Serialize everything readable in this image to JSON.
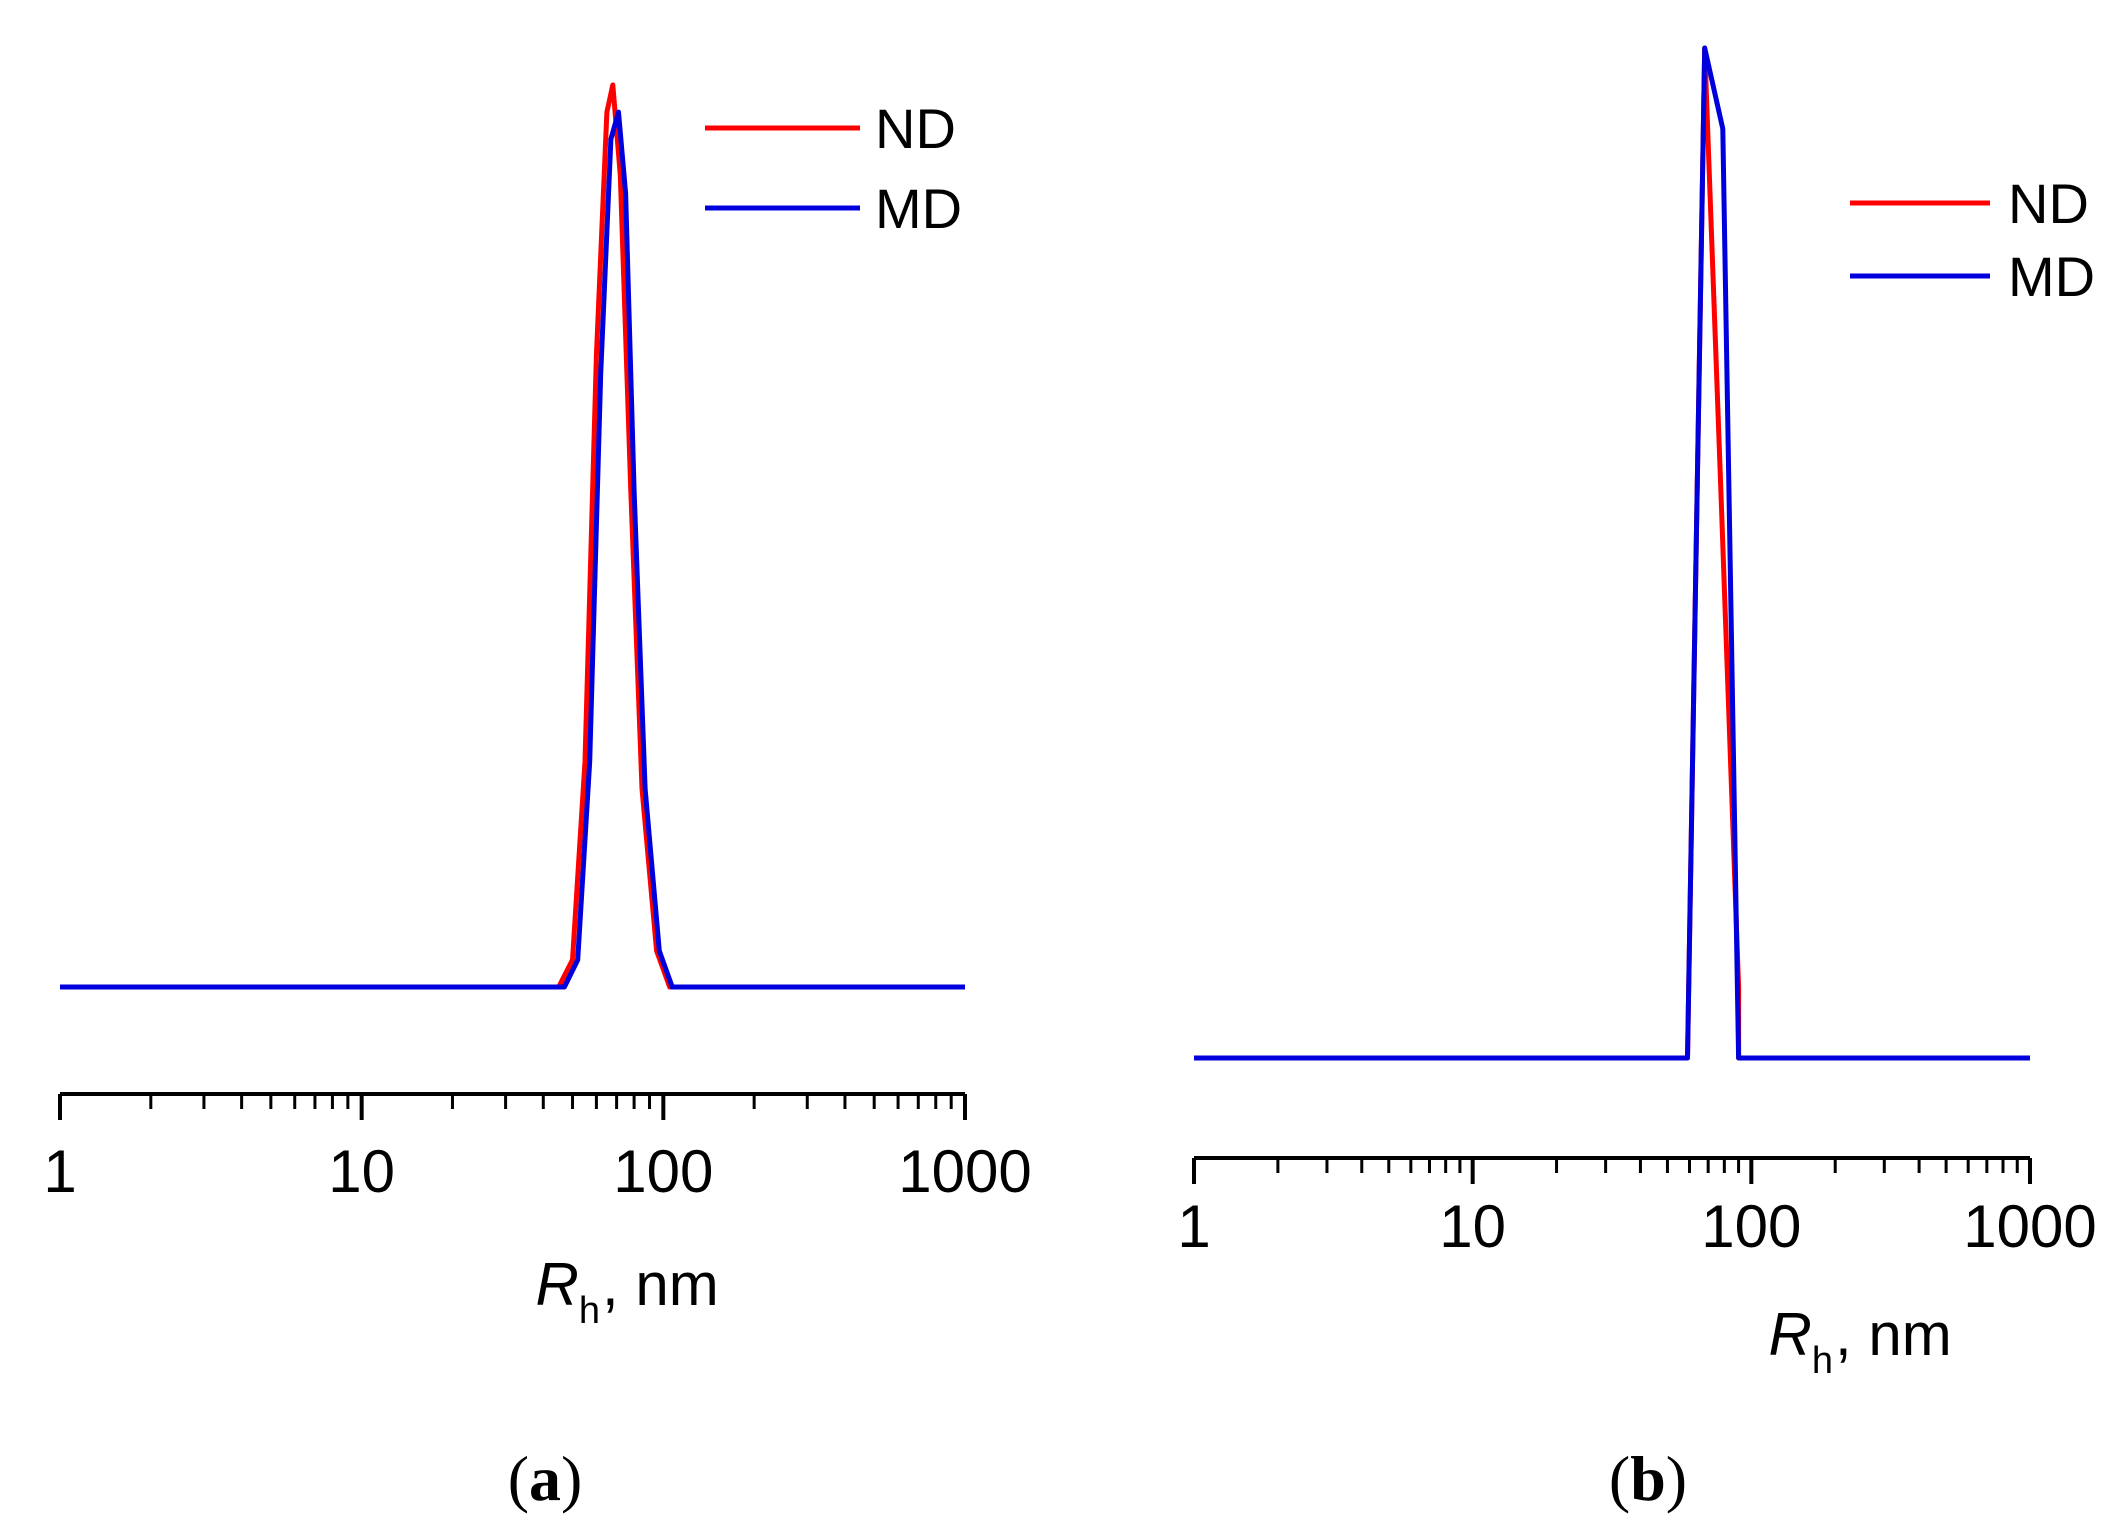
{
  "chart_data": [
    {
      "type": "line",
      "panel_label": "a",
      "xscale": "log",
      "xlim": [
        1,
        1000
      ],
      "xticks": [
        "1",
        "10",
        "100",
        "1000"
      ],
      "xlabel_main": "R",
      "xlabel_sub": "h",
      "xlabel_rest": ", nm",
      "ylabel": "",
      "legend_position": "top-right",
      "series": [
        {
          "name": "ND",
          "color": "#ff0000",
          "x": [
            1,
            45,
            50,
            55,
            60,
            65,
            68,
            72,
            78,
            85,
            95,
            105,
            1000
          ],
          "y": [
            0,
            0,
            0.03,
            0.25,
            0.7,
            0.97,
            1.0,
            0.9,
            0.55,
            0.22,
            0.04,
            0,
            0
          ]
        },
        {
          "name": "MD",
          "color": "#0000dd",
          "x": [
            1,
            47,
            52,
            57,
            62,
            67,
            71,
            75,
            80,
            87,
            97,
            107,
            1000
          ],
          "y": [
            0,
            0,
            0.03,
            0.25,
            0.68,
            0.94,
            0.97,
            0.88,
            0.55,
            0.22,
            0.04,
            0,
            0
          ]
        }
      ]
    },
    {
      "type": "line",
      "panel_label": "b",
      "xscale": "log",
      "xlim": [
        1,
        1000
      ],
      "xticks": [
        "1",
        "10",
        "100",
        "1000"
      ],
      "xlabel_main": "R",
      "xlabel_sub": "h",
      "xlabel_rest": ", nm",
      "ylabel": "",
      "legend_position": "top-right",
      "series": [
        {
          "name": "ND",
          "color": "#ff0000",
          "x": [
            1,
            59,
            68,
            78,
            90,
            90,
            1000
          ],
          "y": [
            0,
            0,
            1.0,
            0.55,
            0.07,
            0,
            0
          ]
        },
        {
          "name": "MD",
          "color": "#0000dd",
          "x": [
            1,
            59,
            68,
            79,
            90,
            90,
            1000
          ],
          "y": [
            0,
            0,
            1.0,
            0.92,
            0,
            0,
            0
          ]
        }
      ]
    }
  ]
}
